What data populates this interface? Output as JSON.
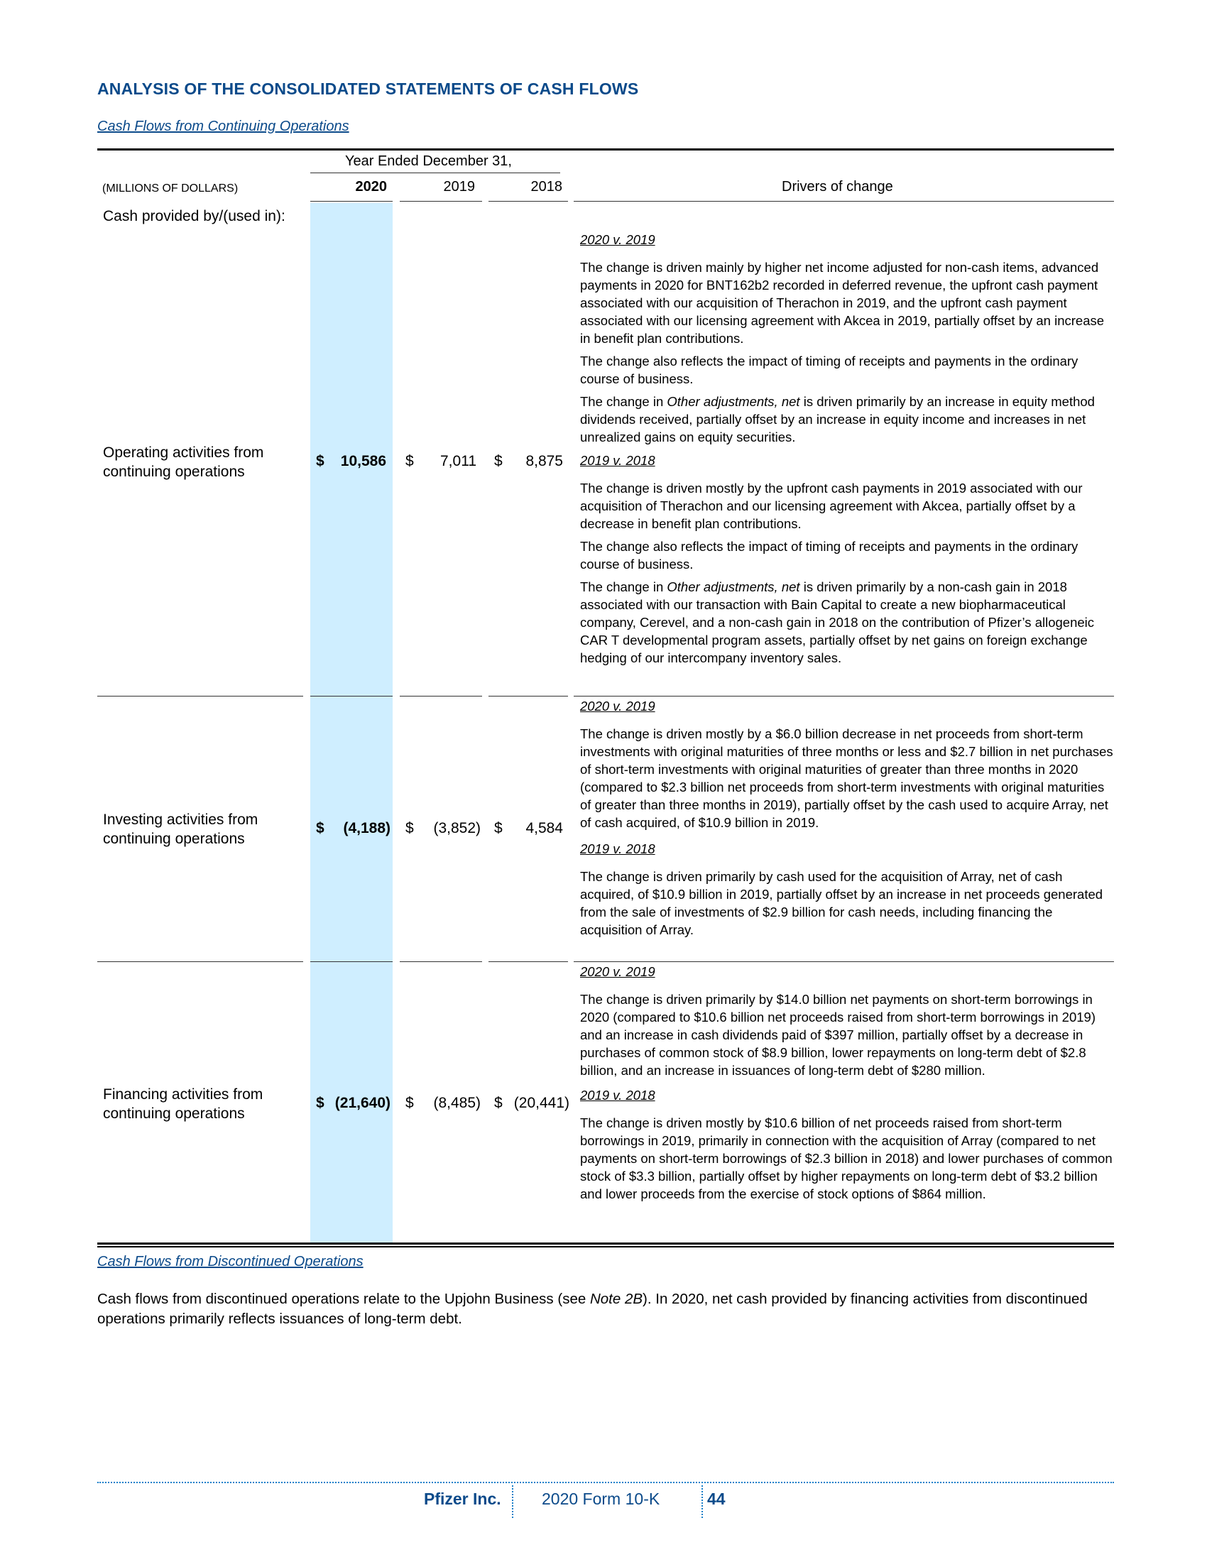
{
  "heading": "ANALYSIS OF THE CONSOLIDATED STATEMENTS OF CASH FLOWS",
  "continuing_link": "Cash Flows from Continuing Operations",
  "table": {
    "period_header": "Year Ended December 31,",
    "units_label": "(MILLIONS OF DOLLARS)",
    "years": [
      "2020",
      "2019",
      "2018"
    ],
    "drivers_header": "Drivers of change",
    "section_label": "Cash provided by/(used in):",
    "rows": [
      {
        "label_lines": [
          "Operating activities from",
          "continuing operations"
        ],
        "values": [
          {
            "sym": "$",
            "amt": "10,586"
          },
          {
            "sym": "$",
            "amt": "7,011"
          },
          {
            "sym": "$",
            "amt": "8,875"
          }
        ],
        "drivers": [
          {
            "heading": "2020 v. 2019",
            "paragraphs": [
              "The change is driven mainly by higher net income adjusted for non-cash items, advanced payments in 2020 for BNT162b2 recorded in deferred revenue, the upfront cash payment associated with our acquisition of Therachon in 2019, and the upfront cash payment associated with our licensing agreement with Akcea in 2019, partially offset by an increase in benefit plan contributions.",
              "The change also reflects the impact of timing of receipts and payments in the ordinary course of business."
            ],
            "other_adj": {
              "pre": "The change in ",
              "em": "Other adjustments, net",
              "post": " is driven primarily by an increase in equity method dividends received, partially offset by an increase in equity income and increases in net unrealized gains on equity securities."
            }
          },
          {
            "heading": "2019 v. 2018",
            "paragraphs": [
              "The change is driven mostly by the upfront cash payments in 2019 associated with our acquisition of Therachon and our licensing agreement with Akcea, partially offset by a decrease in benefit plan contributions.",
              "The change also reflects the impact of timing of receipts and payments in the ordinary course of business."
            ],
            "other_adj": {
              "pre": "The change in ",
              "em": "Other adjustments, net",
              "post": " is driven primarily by a non-cash gain in 2018 associated with our transaction with Bain Capital to create a new biopharmaceutical company, Cerevel, and a non-cash gain in 2018 on the contribution of Pfizer’s allogeneic CAR T developmental program assets, partially offset by net gains on foreign exchange hedging of our intercompany inventory sales."
            }
          }
        ]
      },
      {
        "label_lines": [
          "Investing activities from",
          "continuing operations"
        ],
        "values": [
          {
            "sym": "$",
            "amt": "(4,188)"
          },
          {
            "sym": "$",
            "amt": "(3,852)"
          },
          {
            "sym": "$",
            "amt": "4,584"
          }
        ],
        "drivers": [
          {
            "heading": "2020 v. 2019",
            "paragraphs": [
              "The change is driven mostly by a $6.0 billion decrease in net proceeds from short-term investments with original maturities of three months or less and $2.7 billion in net purchases of short-term investments with original maturities of greater than three months in 2020 (compared to $2.3 billion net proceeds from short-term investments with original maturities of greater than three months in 2019), partially offset by the cash used to acquire Array, net of cash acquired, of $10.9 billion in 2019."
            ]
          },
          {
            "heading": "2019 v. 2018",
            "paragraphs": [
              "The change is driven primarily by cash used for the acquisition of Array, net of cash acquired, of $10.9 billion in 2019, partially offset by an increase in net proceeds generated from the sale of investments of $2.9 billion for cash needs, including financing the acquisition of Array."
            ]
          }
        ]
      },
      {
        "label_lines": [
          "Financing activities from",
          "continuing operations"
        ],
        "values": [
          {
            "sym": "$",
            "amt": "(21,640)"
          },
          {
            "sym": "$",
            "amt": "(8,485)"
          },
          {
            "sym": "$",
            "amt": "(20,441)"
          }
        ],
        "drivers": [
          {
            "heading": "2020 v. 2019",
            "paragraphs": [
              "The change is driven primarily by $14.0 billion net payments on short-term borrowings in 2020 (compared to $10.6 billion net proceeds raised from short-term borrowings in 2019) and an increase in cash dividends paid of $397 million, partially offset by a decrease in purchases of common stock of $8.9 billion, lower repayments on long-term debt of $2.8 billion, and an increase in issuances of long-term debt of $280 million."
            ]
          },
          {
            "heading": "2019 v. 2018",
            "paragraphs": [
              "The change is driven mostly by $10.6 billion of net proceeds raised from short-term borrowings in 2019, primarily in connection with the acquisition of Array (compared to net payments on short-term borrowings of $2.3 billion in 2018) and lower purchases of common stock of $3.3 billion, partially offset by higher repayments on long-term debt of $3.2 billion and lower proceeds from the exercise of stock options of $864 million."
            ]
          }
        ]
      }
    ]
  },
  "discontinued_link": "Cash Flows from Discontinued Operations",
  "discontinued_text": {
    "pre": "Cash flows from discontinued operations relate to the Upjohn Business (see ",
    "em": "Note 2B",
    "post": "). In 2020, net cash provided by financing activities from discontinued operations primarily reflects issuances of long-term debt."
  },
  "footer": {
    "company": "Pfizer Inc.",
    "form": "2020 Form 10-K",
    "page": "44"
  },
  "colors": {
    "heading_blue": "#0b4a8a",
    "highlight_column": "#cfeeff",
    "footer_dots": "#1a7fc9"
  }
}
